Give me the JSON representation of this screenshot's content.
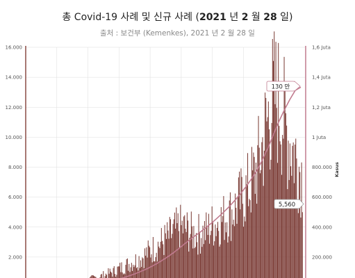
{
  "header": {
    "title_part1": "총 Covid-19 사례 및 신규 사례 (",
    "title_part2": "2021",
    "title_part3": " 년 ",
    "title_part4": "2",
    "title_part5": " 월 ",
    "title_part6": "28",
    "title_part7": " 일)",
    "subtitle": "출처 : 보건부 (Kemenkes), 2021 년 2 월 28 일"
  },
  "colors": {
    "bars": "#7a3a34",
    "cumulative_line": "#c07a8e",
    "axis_left": "#8a4a44",
    "axis_right": "#c07a8e",
    "grid": "#dddddd"
  },
  "chart_data": {
    "type": "bar",
    "title": "총 Covid-19 사례 및 신규 사례 (2021 년 2 월 28 일)",
    "subtitle": "출처 : 보건부 (Kemenkes), 2021 년 2 월 28 일",
    "y_left": {
      "range": [
        0,
        16000
      ],
      "tick_labels": [
        "16.000",
        "14.000",
        "12.000",
        "10.000",
        "8.000",
        "6.000",
        "4.000",
        "2.000"
      ],
      "tick_values": [
        16000,
        14000,
        12000,
        10000,
        8000,
        6000,
        4000,
        2000
      ]
    },
    "y_right": {
      "label": "Kasus",
      "range": [
        0,
        1600000
      ],
      "tick_labels": [
        "1,6 Juta",
        "1,4 Juta",
        "1,2 Juta",
        "1 Juta",
        "800.000",
        "600.000",
        "400.000",
        "200.000"
      ],
      "tick_values": [
        1600000,
        1400000,
        1200000,
        1000000,
        800000,
        600000,
        400000,
        200000
      ]
    },
    "grid": true,
    "series": [
      {
        "type": "bar",
        "axis": "left",
        "values_by_week": [
          0,
          0,
          0,
          0,
          20,
          80,
          150,
          220,
          300,
          400,
          500,
          600,
          700,
          800,
          950,
          1100,
          1300,
          1500,
          1700,
          1900,
          2100,
          2400,
          2700,
          3000,
          3300,
          3600,
          4000,
          4300,
          4200,
          3900,
          3800,
          3900,
          4100,
          4500,
          4700,
          5000,
          5300,
          5700,
          6300,
          6900,
          7600,
          8800,
          10500,
          12500,
          13800,
          13200,
          11500,
          10200,
          9300,
          8000
        ]
      },
      {
        "type": "line",
        "axis": "right",
        "values_by_week": [
          0,
          0,
          0,
          0,
          100,
          500,
          1500,
          3000,
          5000,
          8000,
          12000,
          17000,
          22000,
          28000,
          35000,
          43000,
          52000,
          62000,
          74000,
          87000,
          102000,
          118000,
          136000,
          156000,
          178000,
          202000,
          228000,
          257000,
          287000,
          316000,
          344000,
          371000,
          400000,
          430000,
          463000,
          497000,
          534000,
          574000,
          617000,
          664000,
          716000,
          774000,
          842000,
          922000,
          1012000,
          1101000,
          1180000,
          1250000,
          1312000,
          1334000
        ]
      }
    ],
    "annotations": [
      {
        "text": "130 만",
        "series": "cumulative",
        "value": 1300000
      },
      {
        "text": "5,560",
        "series": "new_cases",
        "value": 5560
      }
    ]
  }
}
